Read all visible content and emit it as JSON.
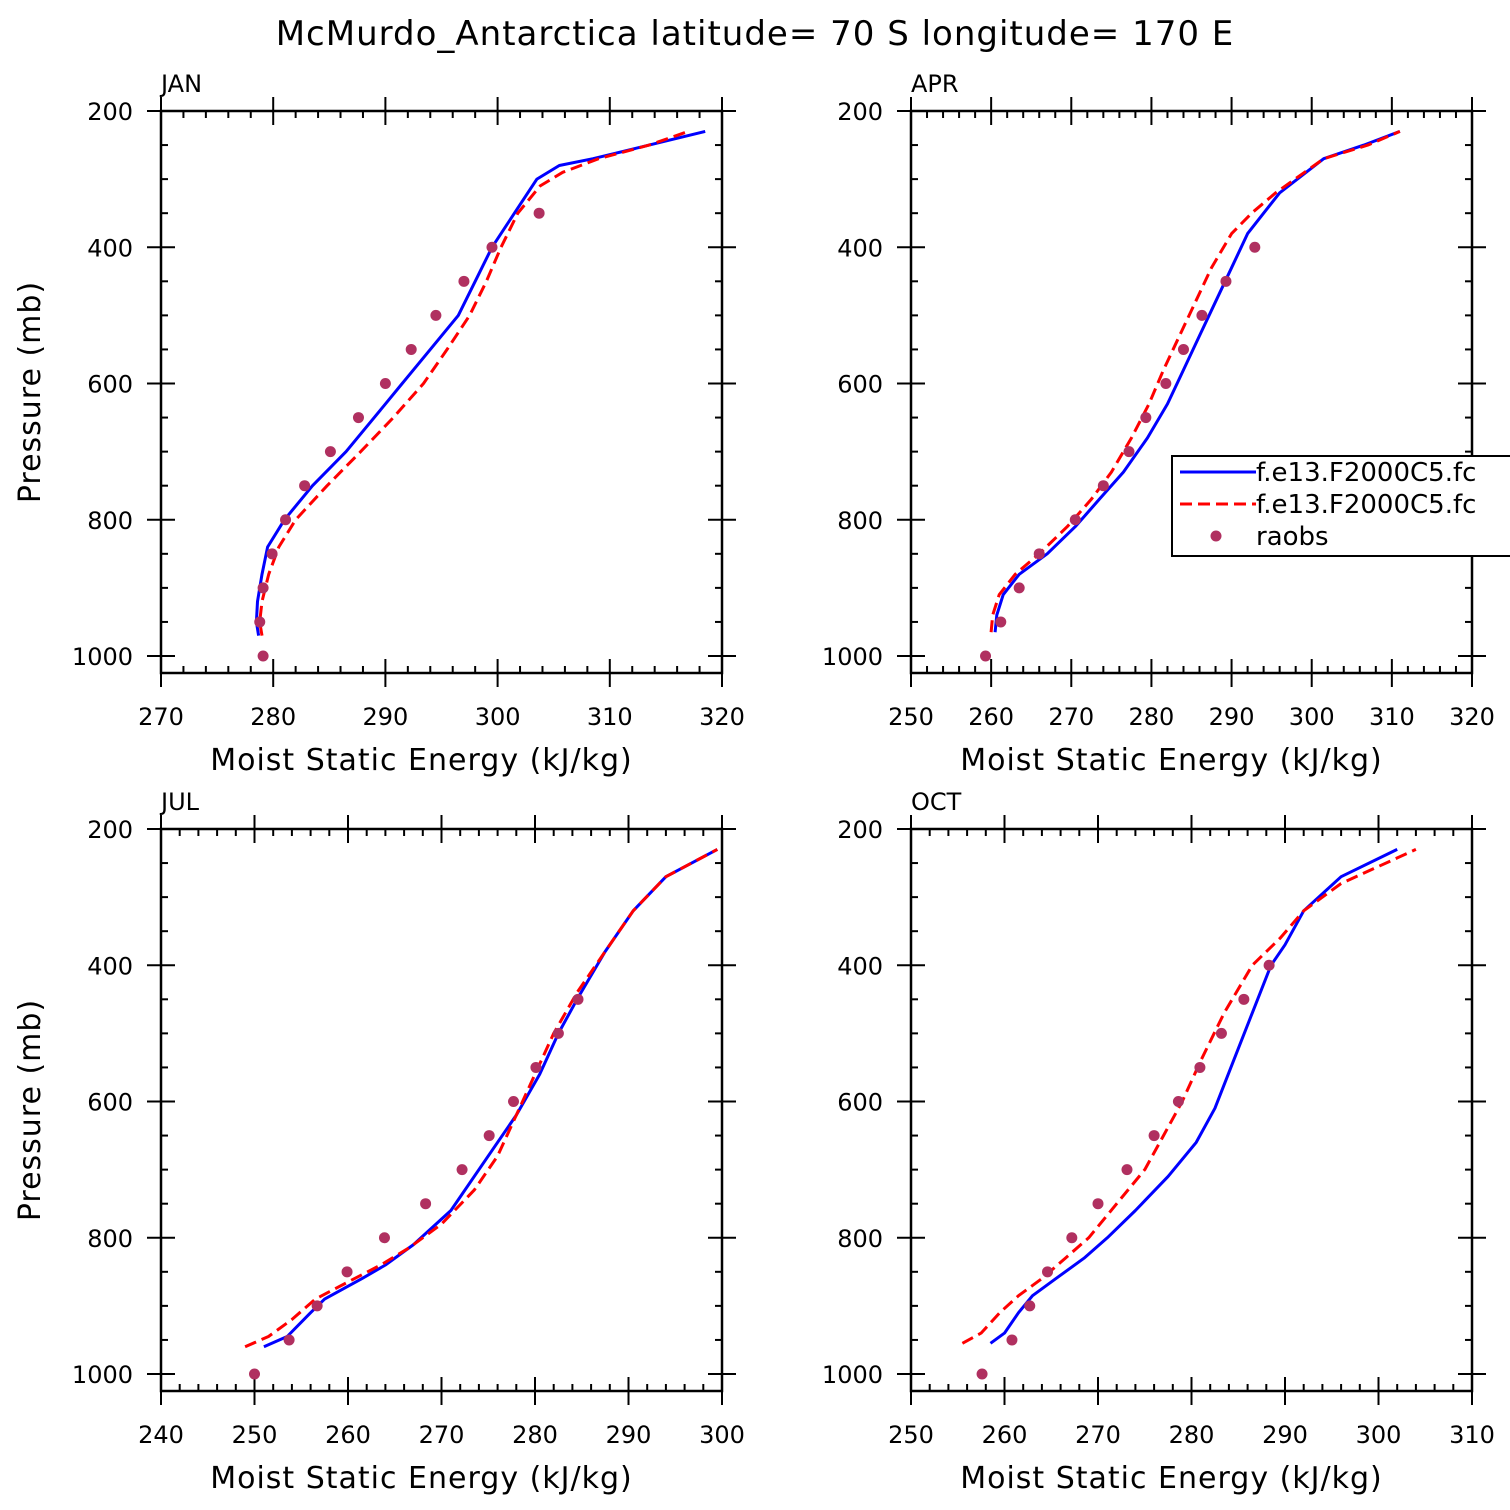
{
  "title": "McMurdo_Antarctica  latitude= 70 S longitude= 170 E",
  "colors": {
    "model_a": "#0000ff",
    "model_b": "#ff0000",
    "raobs": "#b03060"
  },
  "legend": {
    "entries": [
      {
        "label": "f.e13.F2000C5.fc",
        "style": "solid-line",
        "color": "#0000ff"
      },
      {
        "label": "f.e13.F2000C5.fc",
        "style": "dashed-line",
        "color": "#ff0000"
      },
      {
        "label": "raobs",
        "style": "dot",
        "color": "#b03060"
      }
    ]
  },
  "chart_data": [
    {
      "type": "line",
      "panel": "JAN",
      "xlabel": "Moist Static Energy (kJ/kg)",
      "ylabel": "Pressure (mb)",
      "xlim": [
        270,
        320
      ],
      "ylim": [
        1000,
        200
      ],
      "xticks": [
        270,
        280,
        290,
        300,
        310,
        320
      ],
      "yticks": [
        200,
        400,
        600,
        800,
        1000
      ],
      "series": [
        {
          "name": "f.e13.F2000C5.fc",
          "style": "solid",
          "color": "#0000ff",
          "points": [
            [
              278.7,
              970
            ],
            [
              278.5,
              950
            ],
            [
              278.6,
              920
            ],
            [
              279.0,
              880
            ],
            [
              279.5,
              840
            ],
            [
              281.0,
              800
            ],
            [
              283.5,
              750
            ],
            [
              286.5,
              700
            ],
            [
              289.0,
              650
            ],
            [
              291.5,
              600
            ],
            [
              294.0,
              550
            ],
            [
              296.5,
              500
            ],
            [
              298.0,
              450
            ],
            [
              299.5,
              400
            ],
            [
              301.5,
              350
            ],
            [
              303.5,
              300
            ],
            [
              305.5,
              280
            ],
            [
              308.5,
              270
            ],
            [
              313.5,
              250
            ],
            [
              318.5,
              230
            ]
          ]
        },
        {
          "name": "f.e13.F2000C5.fc",
          "style": "dashed",
          "color": "#ff0000",
          "points": [
            [
              279.0,
              970
            ],
            [
              278.8,
              950
            ],
            [
              279.0,
              920
            ],
            [
              279.6,
              880
            ],
            [
              280.5,
              840
            ],
            [
              282.0,
              800
            ],
            [
              284.8,
              750
            ],
            [
              287.8,
              700
            ],
            [
              290.7,
              650
            ],
            [
              293.4,
              600
            ],
            [
              295.5,
              550
            ],
            [
              297.5,
              500
            ],
            [
              299.0,
              450
            ],
            [
              300.3,
              400
            ],
            [
              301.8,
              350
            ],
            [
              303.8,
              310
            ],
            [
              305.8,
              290
            ],
            [
              309.0,
              270
            ],
            [
              313.5,
              250
            ],
            [
              317.0,
              230
            ]
          ]
        },
        {
          "name": "raobs",
          "style": "dots",
          "color": "#b03060",
          "points": [
            [
              279.1,
              1000
            ],
            [
              278.8,
              950
            ],
            [
              279.1,
              900
            ],
            [
              279.9,
              850
            ],
            [
              281.1,
              800
            ],
            [
              282.8,
              750
            ],
            [
              285.1,
              700
            ],
            [
              287.6,
              650
            ],
            [
              290.0,
              600
            ],
            [
              292.3,
              550
            ],
            [
              294.5,
              500
            ],
            [
              297.0,
              450
            ],
            [
              299.5,
              400
            ],
            [
              303.7,
              350
            ]
          ]
        }
      ]
    },
    {
      "type": "line",
      "panel": "APR",
      "xlabel": "Moist Static Energy (kJ/kg)",
      "ylabel": "",
      "xlim": [
        250,
        320
      ],
      "ylim": [
        1000,
        200
      ],
      "xticks": [
        250,
        260,
        270,
        280,
        290,
        300,
        310,
        320
      ],
      "yticks": [
        200,
        400,
        600,
        800,
        1000
      ],
      "series": [
        {
          "name": "f.e13.F2000C5.fc",
          "style": "solid",
          "color": "#0000ff",
          "points": [
            [
              260.5,
              965
            ],
            [
              260.7,
              940
            ],
            [
              261.5,
              910
            ],
            [
              263.5,
              880
            ],
            [
              267.0,
              850
            ],
            [
              270.5,
              810
            ],
            [
              273.5,
              770
            ],
            [
              276.5,
              730
            ],
            [
              279.5,
              680
            ],
            [
              282.0,
              630
            ],
            [
              284.0,
              580
            ],
            [
              286.0,
              530
            ],
            [
              288.0,
              480
            ],
            [
              290.0,
              430
            ],
            [
              292.0,
              380
            ],
            [
              294.0,
              350
            ],
            [
              296.0,
              320
            ],
            [
              301.5,
              270
            ],
            [
              306.5,
              250
            ],
            [
              311.0,
              230
            ]
          ]
        },
        {
          "name": "f.e13.F2000C5.fc",
          "style": "dashed",
          "color": "#ff0000",
          "points": [
            [
              260.0,
              965
            ],
            [
              260.2,
              940
            ],
            [
              261.0,
              910
            ],
            [
              263.0,
              880
            ],
            [
              266.0,
              850
            ],
            [
              269.5,
              810
            ],
            [
              272.5,
              770
            ],
            [
              275.0,
              730
            ],
            [
              277.5,
              680
            ],
            [
              279.7,
              630
            ],
            [
              281.5,
              580
            ],
            [
              283.5,
              530
            ],
            [
              285.5,
              480
            ],
            [
              287.5,
              430
            ],
            [
              290.0,
              380
            ],
            [
              292.5,
              350
            ],
            [
              295.5,
              320
            ],
            [
              301.5,
              270
            ],
            [
              307.0,
              250
            ],
            [
              311.0,
              230
            ]
          ]
        },
        {
          "name": "raobs",
          "style": "dots",
          "color": "#b03060",
          "points": [
            [
              259.3,
              1000
            ],
            [
              261.2,
              950
            ],
            [
              263.5,
              900
            ],
            [
              266.0,
              850
            ],
            [
              270.5,
              800
            ],
            [
              274.0,
              750
            ],
            [
              277.2,
              700
            ],
            [
              279.3,
              650
            ],
            [
              281.8,
              600
            ],
            [
              284.0,
              550
            ],
            [
              286.3,
              500
            ],
            [
              289.3,
              450
            ],
            [
              292.9,
              400
            ]
          ]
        }
      ]
    },
    {
      "type": "line",
      "panel": "JUL",
      "xlabel": "Moist Static Energy (kJ/kg)",
      "ylabel": "Pressure (mb)",
      "xlim": [
        240,
        300
      ],
      "ylim": [
        1000,
        200
      ],
      "xticks": [
        240,
        250,
        260,
        270,
        280,
        290,
        300
      ],
      "yticks": [
        200,
        400,
        600,
        800,
        1000
      ],
      "series": [
        {
          "name": "f.e13.F2000C5.fc",
          "style": "solid",
          "color": "#0000ff",
          "points": [
            [
              251.0,
              960
            ],
            [
              253.5,
              945
            ],
            [
              256.0,
              910
            ],
            [
              257.5,
              890
            ],
            [
              261.5,
              860
            ],
            [
              264.0,
              840
            ],
            [
              267.0,
              810
            ],
            [
              271.0,
              760
            ],
            [
              275.5,
              670
            ],
            [
              278.0,
              620
            ],
            [
              280.5,
              560
            ],
            [
              282.5,
              500
            ],
            [
              284.5,
              450
            ],
            [
              287.5,
              380
            ],
            [
              290.5,
              320
            ],
            [
              294.0,
              270
            ],
            [
              299.5,
              230
            ]
          ]
        },
        {
          "name": "f.e13.F2000C5.fc",
          "style": "dashed",
          "color": "#ff0000",
          "points": [
            [
              249.0,
              960
            ],
            [
              251.5,
              945
            ],
            [
              254.0,
              920
            ],
            [
              256.5,
              890
            ],
            [
              260.0,
              865
            ],
            [
              263.5,
              840
            ],
            [
              266.5,
              815
            ],
            [
              270.0,
              780
            ],
            [
              273.5,
              730
            ],
            [
              276.0,
              680
            ],
            [
              278.0,
              620
            ],
            [
              280.0,
              560
            ],
            [
              282.0,
              500
            ],
            [
              284.5,
              440
            ],
            [
              287.5,
              380
            ],
            [
              290.5,
              320
            ],
            [
              294.0,
              270
            ],
            [
              299.5,
              230
            ]
          ]
        },
        {
          "name": "raobs",
          "style": "dots",
          "color": "#b03060",
          "points": [
            [
              250.0,
              1000
            ],
            [
              253.7,
              950
            ],
            [
              256.7,
              900
            ],
            [
              259.9,
              850
            ],
            [
              263.9,
              800
            ],
            [
              268.3,
              750
            ],
            [
              272.2,
              700
            ],
            [
              275.1,
              650
            ],
            [
              277.7,
              600
            ],
            [
              280.1,
              550
            ],
            [
              282.5,
              500
            ],
            [
              284.6,
              450
            ]
          ]
        }
      ]
    },
    {
      "type": "line",
      "panel": "OCT",
      "xlabel": "Moist Static Energy (kJ/kg)",
      "ylabel": "",
      "xlim": [
        250,
        310
      ],
      "ylim": [
        1000,
        200
      ],
      "xticks": [
        250,
        260,
        270,
        280,
        290,
        300,
        310
      ],
      "yticks": [
        200,
        400,
        600,
        800,
        1000
      ],
      "series": [
        {
          "name": "f.e13.F2000C5.fc",
          "style": "solid",
          "color": "#0000ff",
          "points": [
            [
              258.5,
              955
            ],
            [
              260.0,
              940
            ],
            [
              261.5,
              910
            ],
            [
              263.0,
              885
            ],
            [
              265.5,
              860
            ],
            [
              268.5,
              830
            ],
            [
              271.0,
              800
            ],
            [
              274.0,
              760
            ],
            [
              277.5,
              710
            ],
            [
              280.5,
              660
            ],
            [
              282.5,
              610
            ],
            [
              284.5,
              540
            ],
            [
              286.5,
              470
            ],
            [
              288.5,
              400
            ],
            [
              290.0,
              370
            ],
            [
              292.0,
              320
            ],
            [
              296.0,
              270
            ],
            [
              302.0,
              230
            ]
          ]
        },
        {
          "name": "f.e13.F2000C5.fc",
          "style": "dashed",
          "color": "#ff0000",
          "points": [
            [
              255.5,
              955
            ],
            [
              257.5,
              940
            ],
            [
              259.5,
              910
            ],
            [
              261.5,
              885
            ],
            [
              264.0,
              860
            ],
            [
              266.5,
              830
            ],
            [
              269.0,
              800
            ],
            [
              272.0,
              750
            ],
            [
              275.0,
              700
            ],
            [
              277.0,
              650
            ],
            [
              279.0,
              600
            ],
            [
              281.0,
              540
            ],
            [
              283.5,
              470
            ],
            [
              286.5,
              400
            ],
            [
              289.5,
              360
            ],
            [
              292.0,
              320
            ],
            [
              296.0,
              280
            ],
            [
              304.0,
              230
            ]
          ]
        },
        {
          "name": "raobs",
          "style": "dots",
          "color": "#b03060",
          "points": [
            [
              257.6,
              1000
            ],
            [
              260.8,
              950
            ],
            [
              262.7,
              900
            ],
            [
              264.6,
              850
            ],
            [
              267.2,
              800
            ],
            [
              270.0,
              750
            ],
            [
              273.1,
              700
            ],
            [
              276.0,
              650
            ],
            [
              278.6,
              600
            ],
            [
              280.9,
              550
            ],
            [
              283.2,
              500
            ],
            [
              285.6,
              450
            ],
            [
              288.3,
              400
            ]
          ]
        }
      ]
    }
  ]
}
